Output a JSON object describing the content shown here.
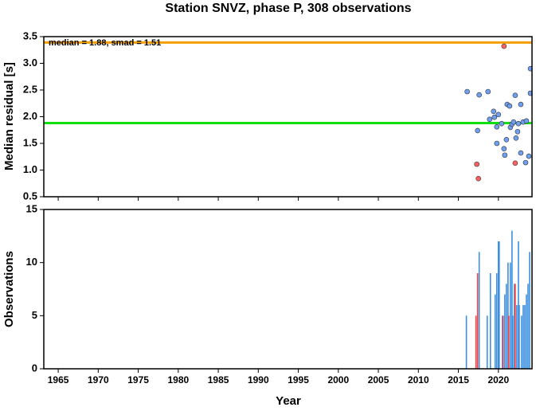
{
  "chart_data": [
    {
      "type": "scatter",
      "title": "Station SNVZ, phase P, 308 observations",
      "ylabel": "Median residual [s]",
      "annotation": "median = 1.88, smad = 1.51",
      "xlim": [
        1963.2,
        2024.2
      ],
      "xticks": [
        1965,
        1970,
        1975,
        1980,
        1985,
        1990,
        1995,
        2000,
        2005,
        2010,
        2015,
        2020
      ],
      "ylim": [
        0.5,
        3.5
      ],
      "yticks": [
        0.5,
        {
          "value": 1.0,
          "label": "1.0"
        },
        1.5,
        {
          "value": 2.0,
          "label": "2.0"
        },
        2.5,
        {
          "value": 3.0,
          "label": "3.0"
        },
        3.5
      ],
      "reference_lines": [
        {
          "value": 3.39,
          "color": "#f5a000"
        },
        {
          "value": 1.88,
          "color": "#10e010"
        }
      ],
      "series": [
        {
          "color": "#6f9ff0",
          "x": [
            2016.1,
            2017.6,
            2018.7,
            2017.4,
            2018.9,
            2019.4,
            2019.5,
            2020.0,
            2019.8,
            2019.8,
            2020.7,
            2020.8,
            2021.0,
            2021.1,
            2021.4,
            2021.5,
            2021.7,
            2021.9,
            2022.1,
            2022.2,
            2022.4,
            2022.5,
            2022.8,
            2022.8,
            2023.1,
            2023.5,
            2023.4,
            2023.8,
            2024.0,
            2024.0,
            2020.4
          ],
          "values": [
            2.47,
            2.41,
            2.47,
            1.74,
            1.95,
            2.1,
            1.99,
            2.04,
            1.81,
            1.5,
            1.4,
            1.28,
            1.57,
            2.23,
            2.2,
            1.8,
            1.86,
            1.9,
            2.4,
            1.6,
            1.72,
            1.87,
            2.23,
            1.32,
            1.9,
            1.92,
            1.14,
            1.26,
            2.9,
            2.44,
            1.87
          ]
        },
        {
          "color": "#ff6060",
          "x": [
            2020.7,
            2017.3,
            2017.5,
            2022.1
          ],
          "values": [
            3.32,
            1.11,
            0.84,
            1.13
          ]
        }
      ]
    },
    {
      "type": "bar",
      "xlabel": "Year",
      "ylabel": "Observations",
      "xlim": [
        1963.2,
        2024.2
      ],
      "xticks": [
        1965,
        1970,
        1975,
        1980,
        1985,
        1990,
        1995,
        2000,
        2005,
        2010,
        2015,
        2020
      ],
      "ylim": [
        0,
        15
      ],
      "yticks": [
        0,
        5,
        10,
        15
      ],
      "series": [
        {
          "color": "#3c8fe0",
          "x": [
            2016.0,
            2017.6,
            2018.6,
            2019.0,
            2019.6,
            2019.8,
            2020.0,
            2020.1,
            2020.5,
            2020.8,
            2021.0,
            2021.2,
            2021.5,
            2021.7,
            2021.8,
            2022.0,
            2022.3,
            2022.5,
            2022.6,
            2022.9,
            2023.1,
            2023.3,
            2023.5,
            2023.7,
            2023.9
          ],
          "values": [
            5,
            11,
            5,
            9,
            7,
            9,
            12,
            12,
            5,
            7,
            8,
            10,
            10,
            13,
            5,
            8,
            6,
            12,
            6,
            5,
            6,
            6,
            7,
            8,
            11
          ]
        },
        {
          "color": "#ff4040",
          "x": [
            2017.2,
            2017.4,
            2020.6,
            2021.3,
            2022.1
          ],
          "values": [
            5,
            9,
            5,
            5,
            8
          ]
        }
      ]
    }
  ]
}
